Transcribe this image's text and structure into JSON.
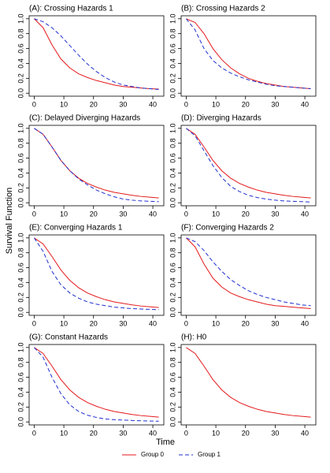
{
  "xlabel": "Time",
  "ylabel": "Survival Function",
  "chart_data": [
    {
      "type": "line",
      "title": "(A): Crossing Hazards 1",
      "x": [
        0,
        3,
        6,
        9,
        12,
        15,
        18,
        21,
        24,
        27,
        30,
        33,
        36,
        39,
        42
      ],
      "series": [
        {
          "name": "Group 0",
          "color": "#e41a1c",
          "dash": "solid",
          "values": [
            1,
            0.88,
            0.65,
            0.46,
            0.34,
            0.26,
            0.21,
            0.17,
            0.14,
            0.11,
            0.09,
            0.08,
            0.07,
            0.06,
            0.055
          ]
        },
        {
          "name": "Group 1",
          "color": "#1f2fd0",
          "dash": "dashed",
          "values": [
            1,
            0.96,
            0.88,
            0.77,
            0.64,
            0.51,
            0.39,
            0.29,
            0.21,
            0.15,
            0.11,
            0.09,
            0.07,
            0.06,
            0.05
          ]
        }
      ],
      "xlim": [
        -1.7,
        43.7
      ],
      "xticks": [
        0,
        10,
        20,
        30,
        40
      ],
      "ylim": [
        -0.04,
        1.04
      ],
      "yticks": [
        {
          "value": 0,
          "label": "0.0"
        },
        0.2,
        0.4,
        0.6,
        0.8,
        {
          "value": 1,
          "label": "1.0"
        }
      ]
    },
    {
      "type": "line",
      "title": "(B): Crossing Hazards 2",
      "x": [
        0,
        3,
        6,
        9,
        12,
        15,
        18,
        21,
        24,
        27,
        30,
        33,
        36,
        39,
        42
      ],
      "series": [
        {
          "name": "Group 0",
          "color": "#e41a1c",
          "dash": "solid",
          "values": [
            1,
            0.95,
            0.8,
            0.6,
            0.45,
            0.34,
            0.26,
            0.2,
            0.16,
            0.13,
            0.11,
            0.09,
            0.08,
            0.07,
            0.06
          ]
        },
        {
          "name": "Group 1",
          "color": "#1f2fd0",
          "dash": "dashed",
          "values": [
            1,
            0.85,
            0.6,
            0.44,
            0.34,
            0.27,
            0.22,
            0.18,
            0.15,
            0.12,
            0.1,
            0.09,
            0.08,
            0.07,
            0.06
          ]
        }
      ],
      "xlim": [
        -1.7,
        43.7
      ],
      "xticks": [
        0,
        10,
        20,
        30,
        40
      ],
      "ylim": [
        -0.04,
        1.04
      ],
      "yticks": [
        {
          "value": 0,
          "label": "0.0"
        },
        0.2,
        0.4,
        0.6,
        0.8,
        {
          "value": 1,
          "label": "1.0"
        }
      ]
    },
    {
      "type": "line",
      "title": "(C): Delayed Diverging Hazards",
      "x": [
        0,
        3,
        6,
        9,
        12,
        15,
        18,
        21,
        24,
        27,
        30,
        33,
        36,
        39,
        42
      ],
      "series": [
        {
          "name": "Group 0",
          "color": "#e41a1c",
          "dash": "solid",
          "values": [
            1,
            0.92,
            0.75,
            0.57,
            0.43,
            0.33,
            0.26,
            0.21,
            0.17,
            0.14,
            0.12,
            0.1,
            0.085,
            0.075,
            0.065
          ]
        },
        {
          "name": "Group 1",
          "color": "#1f2fd0",
          "dash": "dashed",
          "values": [
            1,
            0.92,
            0.75,
            0.57,
            0.43,
            0.32,
            0.24,
            0.17,
            0.12,
            0.08,
            0.05,
            0.035,
            0.025,
            0.02,
            0.015
          ]
        }
      ],
      "xlim": [
        -1.7,
        43.7
      ],
      "xticks": [
        0,
        10,
        20,
        30,
        40
      ],
      "ylim": [
        -0.04,
        1.04
      ],
      "yticks": [
        {
          "value": 0,
          "label": "0.0"
        },
        0.2,
        0.4,
        0.6,
        0.8,
        {
          "value": 1,
          "label": "1.0"
        }
      ]
    },
    {
      "type": "line",
      "title": "(D): Diverging Hazards",
      "x": [
        0,
        3,
        6,
        9,
        12,
        15,
        18,
        21,
        24,
        27,
        30,
        33,
        36,
        39,
        42
      ],
      "series": [
        {
          "name": "Group 0",
          "color": "#e41a1c",
          "dash": "solid",
          "values": [
            1,
            0.92,
            0.75,
            0.57,
            0.43,
            0.33,
            0.26,
            0.21,
            0.17,
            0.14,
            0.12,
            0.1,
            0.085,
            0.075,
            0.065
          ]
        },
        {
          "name": "Group 1",
          "color": "#1f2fd0",
          "dash": "dashed",
          "values": [
            1,
            0.9,
            0.7,
            0.5,
            0.34,
            0.22,
            0.15,
            0.1,
            0.07,
            0.05,
            0.035,
            0.025,
            0.02,
            0.015,
            0.01
          ]
        }
      ],
      "xlim": [
        -1.7,
        43.7
      ],
      "xticks": [
        0,
        10,
        20,
        30,
        40
      ],
      "ylim": [
        -0.04,
        1.04
      ],
      "yticks": [
        {
          "value": 0,
          "label": "0.0"
        },
        0.2,
        0.4,
        0.6,
        0.8,
        {
          "value": 1,
          "label": "1.0"
        }
      ]
    },
    {
      "type": "line",
      "title": "(E): Converging Hazards 1",
      "x": [
        0,
        3,
        6,
        9,
        12,
        15,
        18,
        21,
        24,
        27,
        30,
        33,
        36,
        39,
        42
      ],
      "series": [
        {
          "name": "Group 0",
          "color": "#e41a1c",
          "dash": "solid",
          "values": [
            1,
            0.92,
            0.75,
            0.57,
            0.43,
            0.33,
            0.26,
            0.21,
            0.17,
            0.14,
            0.12,
            0.1,
            0.085,
            0.075,
            0.065
          ]
        },
        {
          "name": "Group 1",
          "color": "#1f2fd0",
          "dash": "dashed",
          "values": [
            1,
            0.82,
            0.55,
            0.37,
            0.26,
            0.19,
            0.14,
            0.11,
            0.09,
            0.07,
            0.06,
            0.05,
            0.045,
            0.04,
            0.035
          ]
        }
      ],
      "xlim": [
        -1.7,
        43.7
      ],
      "xticks": [
        0,
        10,
        20,
        30,
        40
      ],
      "ylim": [
        -0.04,
        1.04
      ],
      "yticks": [
        {
          "value": 0,
          "label": "0.0"
        },
        0.2,
        0.4,
        0.6,
        0.8,
        {
          "value": 1,
          "label": "1.0"
        }
      ]
    },
    {
      "type": "line",
      "title": "(F): Converging Hazards 2",
      "x": [
        0,
        3,
        6,
        9,
        12,
        15,
        18,
        21,
        24,
        27,
        30,
        33,
        36,
        39,
        42
      ],
      "series": [
        {
          "name": "Group 0",
          "color": "#e41a1c",
          "dash": "solid",
          "values": [
            1,
            0.88,
            0.65,
            0.46,
            0.34,
            0.26,
            0.21,
            0.17,
            0.14,
            0.11,
            0.09,
            0.08,
            0.07,
            0.06,
            0.05
          ]
        },
        {
          "name": "Group 1",
          "color": "#1f2fd0",
          "dash": "dashed",
          "values": [
            1,
            0.95,
            0.83,
            0.68,
            0.55,
            0.44,
            0.36,
            0.29,
            0.24,
            0.2,
            0.17,
            0.14,
            0.12,
            0.1,
            0.09
          ]
        }
      ],
      "xlim": [
        -1.7,
        43.7
      ],
      "xticks": [
        0,
        10,
        20,
        30,
        40
      ],
      "ylim": [
        -0.04,
        1.04
      ],
      "yticks": [
        {
          "value": 0,
          "label": "0.0"
        },
        0.2,
        0.4,
        0.6,
        0.8,
        {
          "value": 1,
          "label": "1.0"
        }
      ]
    },
    {
      "type": "line",
      "title": "(G): Constant Hazards",
      "x": [
        0,
        3,
        6,
        9,
        12,
        15,
        18,
        21,
        24,
        27,
        30,
        33,
        36,
        39,
        42
      ],
      "series": [
        {
          "name": "Group 0",
          "color": "#e41a1c",
          "dash": "solid",
          "values": [
            1,
            0.92,
            0.75,
            0.57,
            0.43,
            0.33,
            0.26,
            0.21,
            0.17,
            0.14,
            0.12,
            0.1,
            0.085,
            0.075,
            0.065
          ]
        },
        {
          "name": "Group 1",
          "color": "#1f2fd0",
          "dash": "dashed",
          "values": [
            1,
            0.87,
            0.6,
            0.38,
            0.23,
            0.14,
            0.09,
            0.06,
            0.04,
            0.03,
            0.025,
            0.02,
            0.015,
            0.012,
            0.01
          ]
        }
      ],
      "xlim": [
        -1.7,
        43.7
      ],
      "xticks": [
        0,
        10,
        20,
        30,
        40
      ],
      "ylim": [
        -0.04,
        1.04
      ],
      "yticks": [
        {
          "value": 0,
          "label": "0.0"
        },
        0.2,
        0.4,
        0.6,
        0.8,
        {
          "value": 1,
          "label": "1.0"
        }
      ]
    },
    {
      "type": "line",
      "title": "(H): H0",
      "x": [
        0,
        3,
        6,
        9,
        12,
        15,
        18,
        21,
        24,
        27,
        30,
        33,
        36,
        39,
        42
      ],
      "series": [
        {
          "name": "Group 0",
          "color": "#e41a1c",
          "dash": "solid",
          "values": [
            1,
            0.92,
            0.75,
            0.57,
            0.43,
            0.33,
            0.26,
            0.21,
            0.17,
            0.14,
            0.12,
            0.1,
            0.085,
            0.075,
            0.065
          ]
        }
      ],
      "xlim": [
        -1.7,
        43.7
      ],
      "xticks": [
        0,
        10,
        20,
        30,
        40
      ],
      "ylim": [
        -0.04,
        1.04
      ],
      "yticks": [
        {
          "value": 0,
          "label": "0.0"
        },
        0.2,
        0.4,
        0.6,
        0.8,
        {
          "value": 1,
          "label": "1.0"
        }
      ]
    }
  ]
}
